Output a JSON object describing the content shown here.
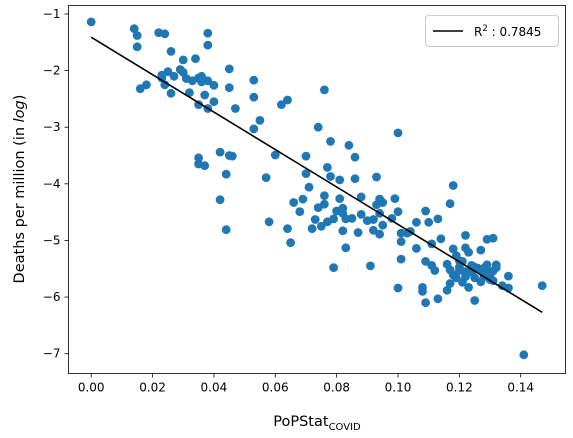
{
  "chart_data": {
    "type": "scatter",
    "xlabel": "PoPStat",
    "xlabel_sub": "COVID",
    "ylabel_main": "Deaths per million (in ",
    "ylabel_italic": "log",
    "ylabel_end": ")",
    "xlim": [
      -0.0074,
      0.1546
    ],
    "ylim": [
      -7.35,
      -0.85
    ],
    "xticks": [
      0.0,
      0.02,
      0.04,
      0.06,
      0.08,
      0.1,
      0.12,
      0.14
    ],
    "xtick_labels": [
      "0.00",
      "0.02",
      "0.04",
      "0.06",
      "0.08",
      "0.10",
      "0.12",
      "0.14"
    ],
    "yticks": [
      -7,
      -6,
      -5,
      -4,
      -3,
      -2,
      -1
    ],
    "ytick_labels": [
      "−7",
      "−6",
      "−5",
      "−4",
      "−3",
      "−2",
      "−1"
    ],
    "grid": false,
    "legend_position": "top-right",
    "colors": {
      "points": "#1f77b4",
      "fit_line": "#000000"
    },
    "fit_line": {
      "label_prefix": "R",
      "label_sup": "2",
      "label_suffix": " : 0.7845",
      "start": [
        0.0,
        -1.41
      ],
      "end": [
        0.147,
        -6.27
      ]
    },
    "points": [
      [
        0.0,
        -1.14
      ],
      [
        0.014,
        -1.26
      ],
      [
        0.015,
        -1.38
      ],
      [
        0.015,
        -1.58
      ],
      [
        0.016,
        -2.32
      ],
      [
        0.018,
        -2.25
      ],
      [
        0.022,
        -1.33
      ],
      [
        0.023,
        -2.08
      ],
      [
        0.023,
        -2.13
      ],
      [
        0.024,
        -1.35
      ],
      [
        0.024,
        -2.25
      ],
      [
        0.025,
        -2.02
      ],
      [
        0.026,
        -1.66
      ],
      [
        0.026,
        -2.4
      ],
      [
        0.027,
        -2.1
      ],
      [
        0.029,
        -1.98
      ],
      [
        0.03,
        -2.03
      ],
      [
        0.03,
        -1.81
      ],
      [
        0.031,
        -2.14
      ],
      [
        0.032,
        -2.39
      ],
      [
        0.033,
        -2.18
      ],
      [
        0.034,
        -1.79
      ],
      [
        0.035,
        -2.13
      ],
      [
        0.035,
        -2.6
      ],
      [
        0.036,
        -2.1
      ],
      [
        0.036,
        -2.2
      ],
      [
        0.037,
        -2.43
      ],
      [
        0.038,
        -1.34
      ],
      [
        0.038,
        -1.55
      ],
      [
        0.038,
        -2.18
      ],
      [
        0.038,
        -2.67
      ],
      [
        0.04,
        -2.26
      ],
      [
        0.04,
        -2.55
      ],
      [
        0.045,
        -2.3
      ],
      [
        0.045,
        -1.97
      ],
      [
        0.047,
        -2.67
      ],
      [
        0.053,
        -2.17
      ],
      [
        0.053,
        -2.47
      ],
      [
        0.053,
        -3.03
      ],
      [
        0.055,
        -2.88
      ],
      [
        0.035,
        -3.54
      ],
      [
        0.035,
        -3.65
      ],
      [
        0.037,
        -3.68
      ],
      [
        0.042,
        -3.44
      ],
      [
        0.044,
        -3.83
      ],
      [
        0.045,
        -3.5
      ],
      [
        0.046,
        -3.51
      ],
      [
        0.042,
        -4.28
      ],
      [
        0.044,
        -4.81
      ],
      [
        0.057,
        -3.89
      ],
      [
        0.058,
        -4.67
      ],
      [
        0.06,
        -3.49
      ],
      [
        0.062,
        -2.6
      ],
      [
        0.064,
        -2.52
      ],
      [
        0.064,
        -4.79
      ],
      [
        0.065,
        -5.04
      ],
      [
        0.066,
        -4.33
      ],
      [
        0.068,
        -4.49
      ],
      [
        0.069,
        -4.27
      ],
      [
        0.07,
        -3.51
      ],
      [
        0.07,
        -3.82
      ],
      [
        0.071,
        -4.06
      ],
      [
        0.072,
        -4.79
      ],
      [
        0.073,
        -4.63
      ],
      [
        0.074,
        -3.0
      ],
      [
        0.074,
        -4.42
      ],
      [
        0.075,
        -4.75
      ],
      [
        0.076,
        -4.36
      ],
      [
        0.076,
        -4.21
      ],
      [
        0.076,
        -2.34
      ],
      [
        0.077,
        -3.71
      ],
      [
        0.077,
        -4.67
      ],
      [
        0.078,
        -3.25
      ],
      [
        0.078,
        -3.87
      ],
      [
        0.079,
        -4.62
      ],
      [
        0.079,
        -5.48
      ],
      [
        0.08,
        -4.48
      ],
      [
        0.081,
        -4.26
      ],
      [
        0.081,
        -3.93
      ],
      [
        0.082,
        -4.43
      ],
      [
        0.082,
        -4.52
      ],
      [
        0.082,
        -4.83
      ],
      [
        0.083,
        -5.13
      ],
      [
        0.083,
        -4.62
      ],
      [
        0.084,
        -3.32
      ],
      [
        0.085,
        -4.61
      ],
      [
        0.086,
        -3.53
      ],
      [
        0.086,
        -3.91
      ],
      [
        0.087,
        -4.86
      ],
      [
        0.088,
        -4.54
      ],
      [
        0.088,
        -4.23
      ],
      [
        0.09,
        -4.65
      ],
      [
        0.091,
        -5.45
      ],
      [
        0.092,
        -4.63
      ],
      [
        0.092,
        -4.82
      ],
      [
        0.093,
        -3.88
      ],
      [
        0.093,
        -4.37
      ],
      [
        0.094,
        -4.89
      ],
      [
        0.094,
        -4.52
      ],
      [
        0.094,
        -4.27
      ],
      [
        0.095,
        -4.33
      ],
      [
        0.095,
        -4.73
      ],
      [
        0.098,
        -4.61
      ],
      [
        0.099,
        -4.26
      ],
      [
        0.1,
        -4.49
      ],
      [
        0.1,
        -3.1
      ],
      [
        0.1,
        -5.84
      ],
      [
        0.101,
        -5.02
      ],
      [
        0.101,
        -5.33
      ],
      [
        0.101,
        -4.87
      ],
      [
        0.103,
        -4.87
      ],
      [
        0.104,
        -4.84
      ],
      [
        0.106,
        -4.68
      ],
      [
        0.106,
        -5.14
      ],
      [
        0.108,
        -5.9
      ],
      [
        0.108,
        -5.83
      ],
      [
        0.109,
        -4.48
      ],
      [
        0.109,
        -5.37
      ],
      [
        0.109,
        -6.1
      ],
      [
        0.11,
        -4.68
      ],
      [
        0.111,
        -5.06
      ],
      [
        0.111,
        -5.44
      ],
      [
        0.112,
        -5.53
      ],
      [
        0.113,
        -4.62
      ],
      [
        0.113,
        -6.03
      ],
      [
        0.114,
        -4.97
      ],
      [
        0.116,
        -5.42
      ],
      [
        0.116,
        -5.88
      ],
      [
        0.117,
        -4.35
      ],
      [
        0.117,
        -5.52
      ],
      [
        0.117,
        -5.76
      ],
      [
        0.118,
        -5.61
      ],
      [
        0.118,
        -5.15
      ],
      [
        0.118,
        -4.03
      ],
      [
        0.119,
        -5.27
      ],
      [
        0.119,
        -5.66
      ],
      [
        0.12,
        -5.36
      ],
      [
        0.12,
        -5.47
      ],
      [
        0.12,
        -5.53
      ],
      [
        0.121,
        -5.37
      ],
      [
        0.121,
        -5.74
      ],
      [
        0.122,
        -4.91
      ],
      [
        0.122,
        -5.13
      ],
      [
        0.122,
        -5.55
      ],
      [
        0.122,
        -5.64
      ],
      [
        0.123,
        -5.21
      ],
      [
        0.123,
        -5.83
      ],
      [
        0.124,
        -5.44
      ],
      [
        0.124,
        -5.56
      ],
      [
        0.125,
        -5.47
      ],
      [
        0.125,
        -5.66
      ],
      [
        0.125,
        -6.06
      ],
      [
        0.126,
        -5.49
      ],
      [
        0.127,
        -5.17
      ],
      [
        0.127,
        -5.53
      ],
      [
        0.127,
        -5.73
      ],
      [
        0.128,
        -5.49
      ],
      [
        0.128,
        -5.64
      ],
      [
        0.129,
        -5.54
      ],
      [
        0.129,
        -5.43
      ],
      [
        0.129,
        -4.98
      ],
      [
        0.13,
        -5.6
      ],
      [
        0.13,
        -5.69
      ],
      [
        0.131,
        -5.54
      ],
      [
        0.131,
        -5.71
      ],
      [
        0.131,
        -4.96
      ],
      [
        0.132,
        -5.43
      ],
      [
        0.132,
        -5.48
      ],
      [
        0.134,
        -5.8
      ],
      [
        0.136,
        -5.63
      ],
      [
        0.136,
        -5.84
      ],
      [
        0.141,
        -7.02
      ],
      [
        0.147,
        -5.8
      ]
    ]
  }
}
